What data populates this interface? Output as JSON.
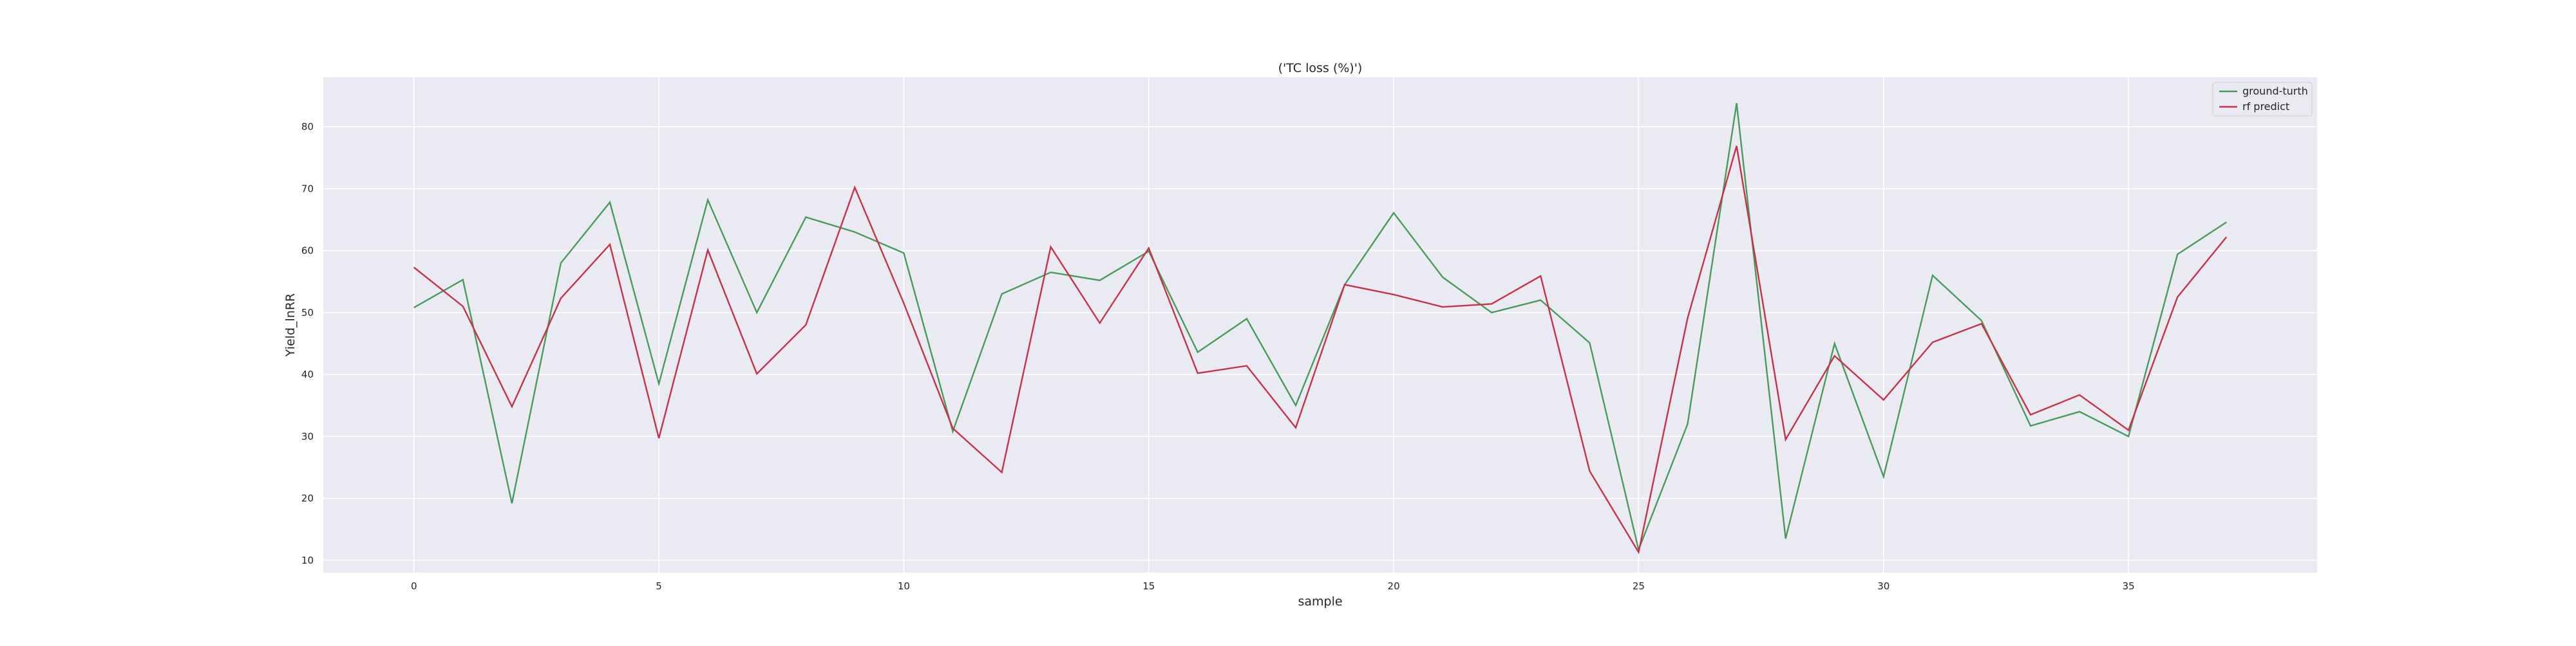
{
  "chart_data": {
    "type": "line",
    "title": "('TC loss (%)')",
    "xlabel": "sample",
    "ylabel": "Yield_lnRR",
    "xlim": [
      -1.85,
      38.85
    ],
    "ylim": [
      8,
      88
    ],
    "xticks": [
      0,
      5,
      10,
      15,
      20,
      25,
      30,
      35
    ],
    "yticks": [
      10,
      20,
      30,
      40,
      50,
      60,
      70,
      80
    ],
    "grid": true,
    "legend_position": "top-right",
    "x": [
      0,
      1,
      2,
      3,
      4,
      5,
      6,
      7,
      8,
      9,
      10,
      11,
      12,
      13,
      14,
      15,
      16,
      17,
      18,
      19,
      20,
      21,
      22,
      23,
      24,
      25,
      26,
      27,
      28,
      29,
      30,
      31,
      32,
      33,
      34,
      35,
      36,
      37
    ],
    "series": [
      {
        "name": "ground-turth",
        "color": "#4a9a5f",
        "values": [
          50.8,
          55.3,
          19.2,
          58.0,
          67.8,
          38.5,
          68.2,
          50.0,
          65.4,
          63.0,
          59.6,
          30.8,
          53.0,
          56.5,
          55.2,
          59.9,
          43.6,
          49.0,
          35.0,
          54.5,
          66.1,
          55.7,
          50.0,
          52.0,
          45.1,
          11.7,
          32.0,
          83.8,
          13.5,
          45.0,
          23.5,
          56.0,
          48.7,
          31.7,
          34.0,
          30.0,
          59.4,
          64.6
        ]
      },
      {
        "name": "rf predict",
        "color": "#c8314a",
        "values": [
          57.3,
          51.0,
          34.8,
          52.3,
          61.0,
          29.7,
          60.1,
          40.1,
          48.0,
          70.2,
          51.5,
          31.3,
          24.2,
          60.6,
          48.3,
          60.4,
          40.2,
          41.4,
          31.4,
          54.5,
          52.9,
          50.9,
          51.4,
          55.9,
          24.4,
          11.3,
          49.1,
          76.9,
          29.5,
          43.0,
          35.9,
          45.2,
          48.2,
          33.5,
          36.7,
          31.0,
          52.5,
          62.2
        ]
      }
    ]
  }
}
